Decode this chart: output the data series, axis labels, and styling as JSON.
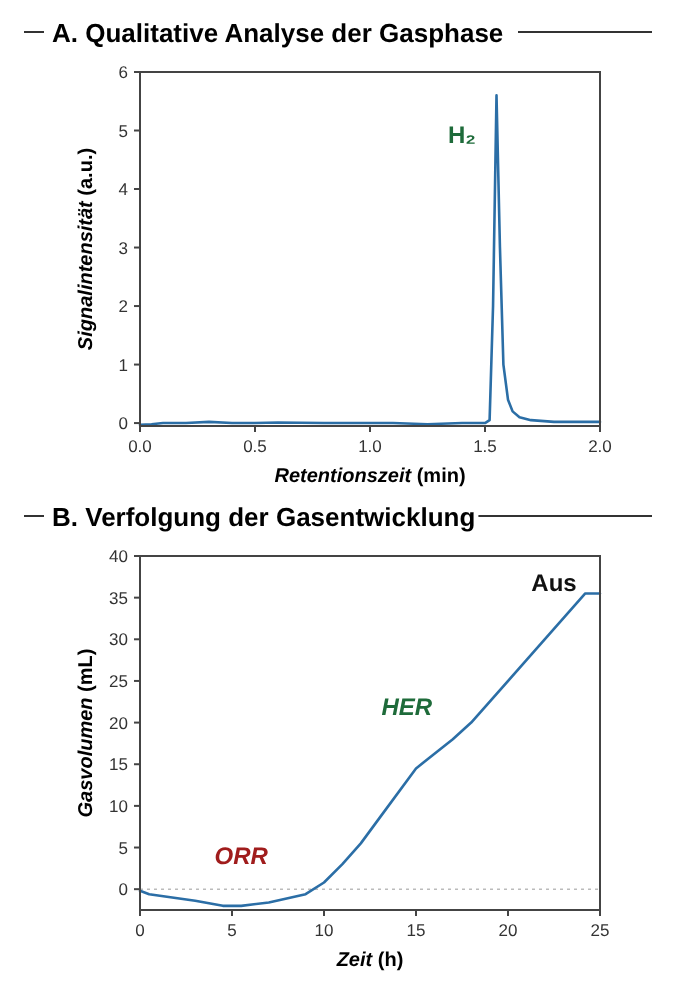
{
  "chart_data": [
    {
      "type": "line",
      "title": "A. Qualitative Analyse der Gasphase",
      "xlabel": "Retentionszeit (min)",
      "ylabel": "Signalintensität (a.u.)",
      "xlim": [
        0,
        2
      ],
      "ylim": [
        -0.05,
        6
      ],
      "xticks": [
        {
          "value": 0,
          "label": "0.0"
        },
        {
          "value": 0.5,
          "label": "0.5"
        },
        {
          "value": 1,
          "label": "1.0"
        },
        {
          "value": 1.5,
          "label": "1.5"
        },
        {
          "value": 2,
          "label": "2.0"
        }
      ],
      "yticks": [
        0,
        1,
        2,
        3,
        4,
        5,
        6
      ],
      "series": [
        {
          "color": "#2b6ea6",
          "x": [
            0,
            0.05,
            0.1,
            0.2,
            0.3,
            0.4,
            0.5,
            0.6,
            0.8,
            1.0,
            1.1,
            1.25,
            1.4,
            1.5,
            1.52,
            1.535,
            1.55,
            1.565,
            1.58,
            1.6,
            1.62,
            1.65,
            1.7,
            1.8,
            1.9,
            2.0
          ],
          "values": [
            -0.03,
            -0.02,
            0,
            0,
            0.02,
            0,
            0,
            0.01,
            0,
            0,
            0,
            -0.02,
            0,
            0,
            0.05,
            2,
            5.6,
            3,
            1,
            0.4,
            0.2,
            0.1,
            0.05,
            0.02,
            0.02,
            0.02
          ]
        }
      ],
      "annotations": [
        "H₂"
      ]
    },
    {
      "type": "line",
      "title": "B. Verfolgung der Gasentwicklung",
      "xlabel": "Zeit (h)",
      "ylabel": "Gasvolumen (mL)",
      "xlim": [
        0,
        25
      ],
      "ylim": [
        -2.5,
        40
      ],
      "xticks": [
        0,
        5,
        10,
        15,
        20,
        25
      ],
      "yticks": [
        0,
        5,
        10,
        15,
        20,
        25,
        30,
        35,
        40
      ],
      "ref_lines": [
        {
          "axis": "y",
          "value": 0,
          "color": "#bbbbbb",
          "line_style": "dotted"
        }
      ],
      "series": [
        {
          "color": "#2b6ea6",
          "x": [
            0,
            0.5,
            3,
            4.5,
            5.5,
            7,
            9,
            10,
            11,
            12,
            13,
            15,
            17,
            18,
            21,
            24.2,
            25
          ],
          "values": [
            -0.2,
            -0.6,
            -1.4,
            -2,
            -2,
            -1.6,
            -0.6,
            0.8,
            3,
            5.5,
            8.5,
            14.5,
            18,
            20,
            27.5,
            35.5,
            35.5
          ]
        }
      ],
      "annotations": [
        "ORR",
        "HER",
        "Aus"
      ]
    }
  ]
}
